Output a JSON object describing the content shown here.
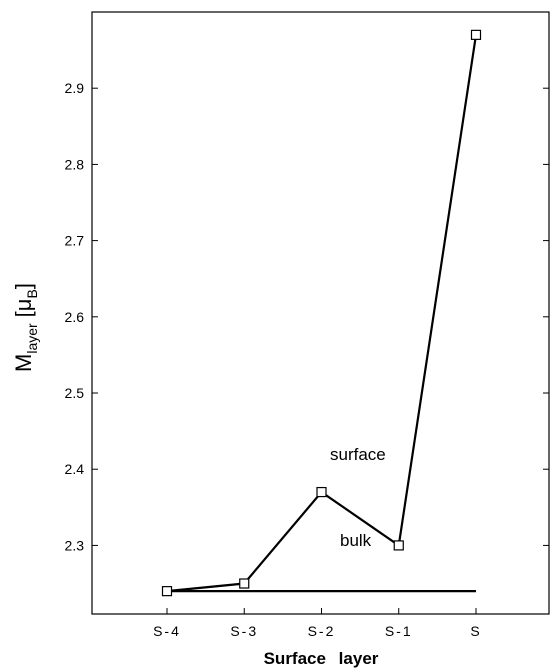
{
  "chart_data": {
    "type": "line",
    "categories": [
      "S-4",
      "S-3",
      "S-2",
      "S-1",
      "S"
    ],
    "x_label": "Surface layer",
    "y_label": {
      "main": "M",
      "sub": "layer",
      "unit_open": "[",
      "unit_mu": "μ",
      "unit_sub": "B",
      "unit_close": "]"
    },
    "ylim": [
      2.21,
      3.0
    ],
    "yticks": [
      "2.3",
      "2.4",
      "2.5",
      "2.6",
      "2.7",
      "2.8",
      "2.9"
    ],
    "series": [
      {
        "name": "surface",
        "values": [
          2.24,
          2.25,
          2.37,
          2.3,
          2.97
        ],
        "markers": "open-square",
        "color": "#000000"
      },
      {
        "name": "bulk",
        "values": [
          2.24,
          2.24,
          2.24,
          2.24,
          2.24
        ],
        "markers": "none",
        "color": "#000000"
      }
    ],
    "grid": false
  }
}
